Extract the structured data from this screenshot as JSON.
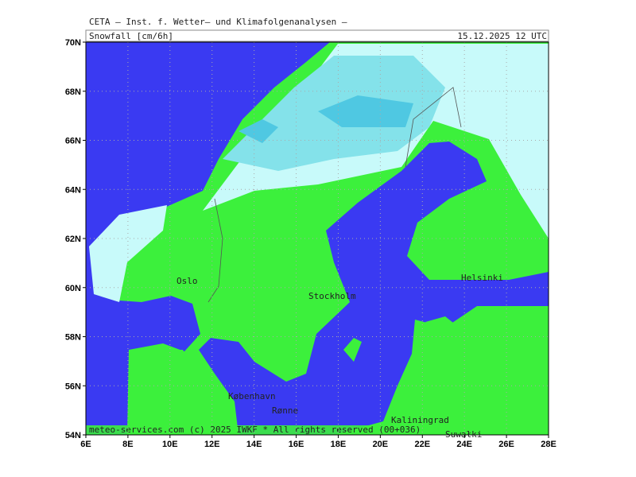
{
  "header": {
    "title": "CETA – Inst. f. Wetter– und Klimafolgenanalysen –",
    "variable": "Snowfall [cm/6h]",
    "date": "15.12.2025 12 UTC"
  },
  "axes": {
    "lon_labels": [
      "6E",
      "8E",
      "10E",
      "12E",
      "14E",
      "16E",
      "18E",
      "20E",
      "22E",
      "24E",
      "26E",
      "28E"
    ],
    "lat_labels": [
      "70N",
      "68N",
      "66N",
      "64N",
      "62N",
      "60N",
      "58N",
      "56N",
      "54N"
    ]
  },
  "cities": [
    "Oslo",
    "Stockholm",
    "Helsinki",
    "København",
    "Rønne",
    "Kaliningrad",
    "Suwałki"
  ],
  "footer": "meteo-services.com (c) 2025 IWKF * All rights reserved (00+036)"
}
